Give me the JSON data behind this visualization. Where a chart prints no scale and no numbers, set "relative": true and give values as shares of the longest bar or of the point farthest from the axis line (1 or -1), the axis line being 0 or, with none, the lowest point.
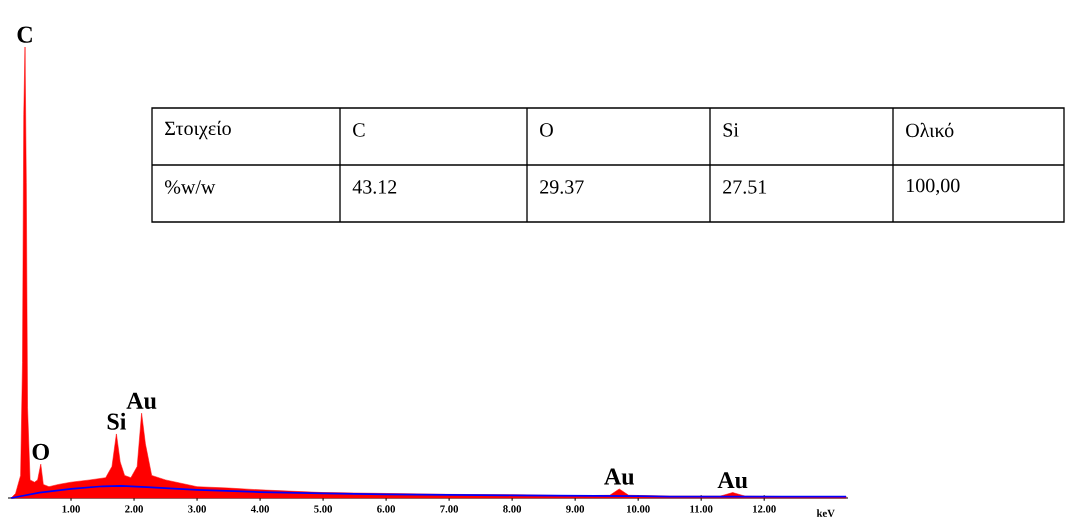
{
  "chart_data": [
    {
      "type": "area",
      "relative": true,
      "xlabel": "keV",
      "xlim": [
        0,
        13.33
      ],
      "xticks": [
        {
          "value": 1,
          "label": "1.00"
        },
        {
          "value": 2,
          "label": "2.00"
        },
        {
          "value": 3,
          "label": "3.00"
        },
        {
          "value": 4,
          "label": "4.00"
        },
        {
          "value": 5,
          "label": "5.00"
        },
        {
          "value": 6,
          "label": "6.00"
        },
        {
          "value": 7,
          "label": "7.00"
        },
        {
          "value": 8,
          "label": "8.00"
        },
        {
          "value": 9,
          "label": "9.00"
        },
        {
          "value": 10,
          "label": "10.00"
        },
        {
          "value": 11,
          "label": "11.00"
        },
        {
          "value": 12,
          "label": "12.00"
        }
      ],
      "series": [
        {
          "type": "area",
          "color": "#ff0000",
          "x": [
            0.05,
            0.12,
            0.2,
            0.23,
            0.25,
            0.27,
            0.29,
            0.31,
            0.35,
            0.42,
            0.47,
            0.52,
            0.56,
            0.65,
            0.8,
            1.0,
            1.3,
            1.55,
            1.65,
            1.72,
            1.78,
            1.85,
            1.95,
            2.05,
            2.12,
            2.18,
            2.28,
            2.5,
            3.0,
            3.5,
            4.0,
            4.5,
            5.0,
            6.0,
            7.0,
            8.0,
            9.0,
            9.55,
            9.7,
            9.85,
            10.5,
            11.3,
            11.5,
            11.7,
            12.5,
            13.3
          ],
          "values": [
            0,
            0.01,
            0.05,
            0.3,
            0.85,
            1.0,
            0.7,
            0.2,
            0.04,
            0.035,
            0.04,
            0.075,
            0.03,
            0.025,
            0.03,
            0.035,
            0.04,
            0.045,
            0.07,
            0.142,
            0.08,
            0.05,
            0.045,
            0.07,
            0.188,
            0.12,
            0.05,
            0.04,
            0.025,
            0.022,
            0.018,
            0.015,
            0.012,
            0.01,
            0.008,
            0.007,
            0.005,
            0.006,
            0.02,
            0.006,
            0.004,
            0.004,
            0.012,
            0.004,
            0.003,
            0.003
          ]
        },
        {
          "type": "line",
          "color": "#0000ff",
          "x": [
            0.05,
            0.5,
            1.0,
            1.5,
            1.8,
            2.2,
            3.0,
            4.0,
            5.0,
            6.0,
            8.0,
            10.0,
            10.5,
            13.3
          ],
          "values": [
            0,
            0.012,
            0.02,
            0.026,
            0.027,
            0.024,
            0.018,
            0.013,
            0.01,
            0.008,
            0.006,
            0.004,
            0.003,
            0.003
          ]
        }
      ],
      "annotations": [
        {
          "text": "C",
          "x": 0.27,
          "y": 1.0
        },
        {
          "text": "O",
          "x": 0.52,
          "y": 0.075
        },
        {
          "text": "Si",
          "x": 1.72,
          "y": 0.142
        },
        {
          "text": "Au",
          "x": 2.12,
          "y": 0.188
        },
        {
          "text": "Au",
          "x": 9.7,
          "y": 0.02
        },
        {
          "text": "Au",
          "x": 11.5,
          "y": 0.012
        }
      ]
    },
    {
      "type": "other",
      "xlabel": "Στοιχείο",
      "categories": [
        "C",
        "O",
        "Si",
        "Ολικό"
      ],
      "ylabel": "%w/w",
      "value_labels": [
        "43.12",
        "29.37",
        "27.51",
        "100,00"
      ]
    }
  ]
}
